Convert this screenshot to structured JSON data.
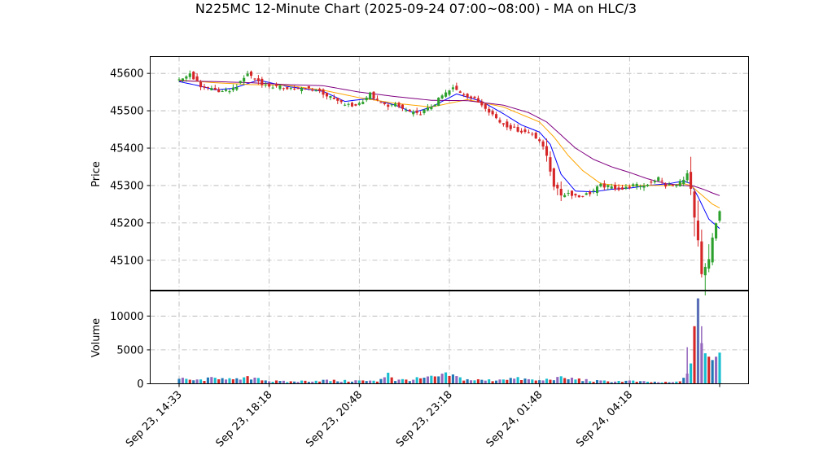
{
  "chart_data": {
    "type": "candlestick",
    "title": "N225MC 12-Minute Chart (2025-09-24 07:00~08:00) - MA on HLC/3",
    "price_panel": {
      "ylabel": "Price",
      "ylim": [
        45020,
        45645
      ],
      "yticks": [
        45100,
        45200,
        45300,
        45400,
        45500,
        45600
      ],
      "grid": true
    },
    "volume_panel": {
      "ylabel": "Volume",
      "ylim": [
        0,
        13700
      ],
      "yticks": [
        0,
        5000,
        10000
      ],
      "grid": true
    },
    "x_tick_labels": [
      "Sep 23, 14:33",
      "Sep 23, 18:18",
      "Sep 23, 20:48",
      "Sep 23, 23:18",
      "Sep 24, 01:48",
      "Sep 24, 04:18"
    ],
    "x_tick_index": [
      0,
      25,
      50,
      75,
      100,
      125
    ],
    "n_bars": 151,
    "colors": {
      "up": "#2ca02c",
      "down": "#d62728",
      "ma_fast": "#0000ff",
      "ma_mid": "#ffa500",
      "ma_slow": "#800080",
      "volume_a": "#1f77b4",
      "volume_b": "#9467bd",
      "volume_c": "#17becf",
      "volume_d": "#d62728"
    },
    "close_anchors": [
      [
        0,
        45580
      ],
      [
        3,
        45600
      ],
      [
        6,
        45565
      ],
      [
        9,
        45560
      ],
      [
        12,
        45548
      ],
      [
        15,
        45560
      ],
      [
        17,
        45575
      ],
      [
        19,
        45600
      ],
      [
        21,
        45585
      ],
      [
        24,
        45568
      ],
      [
        27,
        45563
      ],
      [
        30,
        45562
      ],
      [
        33,
        45558
      ],
      [
        36,
        45560
      ],
      [
        39,
        45552
      ],
      [
        42,
        45535
      ],
      [
        45,
        45520
      ],
      [
        48,
        45512
      ],
      [
        50,
        45520
      ],
      [
        53,
        45545
      ],
      [
        55,
        45525
      ],
      [
        57,
        45515
      ],
      [
        60,
        45515
      ],
      [
        63,
        45500
      ],
      [
        66,
        45490
      ],
      [
        69,
        45505
      ],
      [
        71,
        45520
      ],
      [
        73,
        45540
      ],
      [
        76,
        45560
      ],
      [
        79,
        45545
      ],
      [
        82,
        45530
      ],
      [
        85,
        45510
      ],
      [
        87,
        45490
      ],
      [
        89,
        45470
      ],
      [
        92,
        45455
      ],
      [
        95,
        45445
      ],
      [
        98,
        45440
      ],
      [
        100,
        45420
      ],
      [
        102,
        45380
      ],
      [
        104,
        45300
      ],
      [
        106,
        45275
      ],
      [
        108,
        45280
      ],
      [
        111,
        45270
      ],
      [
        114,
        45280
      ],
      [
        117,
        45300
      ],
      [
        120,
        45295
      ],
      [
        123,
        45290
      ],
      [
        126,
        45300
      ],
      [
        129,
        45300
      ],
      [
        131,
        45310
      ],
      [
        133,
        45320
      ],
      [
        135,
        45300
      ],
      [
        138,
        45300
      ],
      [
        140,
        45320
      ],
      [
        141,
        45330
      ],
      [
        142,
        45290
      ],
      [
        143,
        45210
      ],
      [
        144,
        45150
      ],
      [
        145,
        45060
      ],
      [
        146,
        45080
      ],
      [
        147,
        45100
      ],
      [
        148,
        45160
      ],
      [
        149,
        45200
      ],
      [
        150,
        45230
      ]
    ],
    "ma_fast_anchors": [
      [
        0,
        45578
      ],
      [
        5,
        45568
      ],
      [
        10,
        45556
      ],
      [
        15,
        45560
      ],
      [
        22,
        45582
      ],
      [
        30,
        45565
      ],
      [
        40,
        45552
      ],
      [
        46,
        45525
      ],
      [
        53,
        45533
      ],
      [
        60,
        45515
      ],
      [
        65,
        45495
      ],
      [
        70,
        45510
      ],
      [
        77,
        45545
      ],
      [
        84,
        45525
      ],
      [
        90,
        45492
      ],
      [
        95,
        45462
      ],
      [
        100,
        45443
      ],
      [
        103,
        45410
      ],
      [
        106,
        45330
      ],
      [
        110,
        45285
      ],
      [
        115,
        45283
      ],
      [
        120,
        45290
      ],
      [
        125,
        45293
      ],
      [
        130,
        45300
      ],
      [
        136,
        45305
      ],
      [
        140,
        45312
      ],
      [
        142,
        45305
      ],
      [
        144,
        45270
      ],
      [
        147,
        45210
      ],
      [
        150,
        45185
      ]
    ],
    "ma_mid_anchors": [
      [
        0,
        45582
      ],
      [
        10,
        45575
      ],
      [
        20,
        45570
      ],
      [
        30,
        45568
      ],
      [
        40,
        45555
      ],
      [
        50,
        45535
      ],
      [
        60,
        45520
      ],
      [
        70,
        45510
      ],
      [
        80,
        45530
      ],
      [
        90,
        45510
      ],
      [
        100,
        45470
      ],
      [
        104,
        45430
      ],
      [
        108,
        45380
      ],
      [
        112,
        45340
      ],
      [
        117,
        45305
      ],
      [
        122,
        45300
      ],
      [
        130,
        45300
      ],
      [
        136,
        45300
      ],
      [
        140,
        45305
      ],
      [
        142,
        45300
      ],
      [
        145,
        45275
      ],
      [
        148,
        45250
      ],
      [
        150,
        45240
      ]
    ],
    "ma_slow_anchors": [
      [
        0,
        45580
      ],
      [
        10,
        45578
      ],
      [
        20,
        45575
      ],
      [
        30,
        45570
      ],
      [
        40,
        45567
      ],
      [
        50,
        45550
      ],
      [
        60,
        45538
      ],
      [
        70,
        45528
      ],
      [
        80,
        45527
      ],
      [
        90,
        45515
      ],
      [
        97,
        45495
      ],
      [
        102,
        45470
      ],
      [
        106,
        45435
      ],
      [
        110,
        45400
      ],
      [
        115,
        45370
      ],
      [
        120,
        45350
      ],
      [
        125,
        45335
      ],
      [
        130,
        45318
      ],
      [
        135,
        45305
      ],
      [
        140,
        45300
      ],
      [
        143,
        45298
      ],
      [
        146,
        45288
      ],
      [
        148,
        45280
      ],
      [
        150,
        45273
      ]
    ],
    "volume_anchors": [
      [
        0,
        700
      ],
      [
        5,
        500
      ],
      [
        10,
        800
      ],
      [
        12,
        1100
      ],
      [
        15,
        500
      ],
      [
        17,
        700
      ],
      [
        20,
        900
      ],
      [
        22,
        900
      ],
      [
        25,
        400
      ],
      [
        30,
        300
      ],
      [
        35,
        400
      ],
      [
        40,
        500
      ],
      [
        45,
        400
      ],
      [
        50,
        450
      ],
      [
        55,
        350
      ],
      [
        58,
        1700
      ],
      [
        60,
        500
      ],
      [
        65,
        650
      ],
      [
        70,
        900
      ],
      [
        75,
        1300
      ],
      [
        78,
        800
      ],
      [
        80,
        600
      ],
      [
        85,
        500
      ],
      [
        88,
        550
      ],
      [
        90,
        800
      ],
      [
        95,
        700
      ],
      [
        100,
        450
      ],
      [
        104,
        800
      ],
      [
        107,
        800
      ],
      [
        110,
        700
      ],
      [
        115,
        400
      ],
      [
        120,
        350
      ],
      [
        125,
        400
      ],
      [
        128,
        300
      ],
      [
        132,
        250
      ],
      [
        136,
        200
      ],
      [
        139,
        300
      ],
      [
        140,
        900
      ],
      [
        141,
        1500
      ],
      [
        142,
        3000
      ],
      [
        143,
        8500
      ],
      [
        144,
        12600
      ],
      [
        145,
        6000
      ],
      [
        146,
        4500
      ],
      [
        147,
        4000
      ],
      [
        148,
        3500
      ],
      [
        149,
        4000
      ],
      [
        150,
        4600
      ]
    ],
    "volume_spike_markers": [
      [
        141,
        5400
      ],
      [
        144,
        12600
      ],
      [
        145,
        8500
      ]
    ]
  }
}
